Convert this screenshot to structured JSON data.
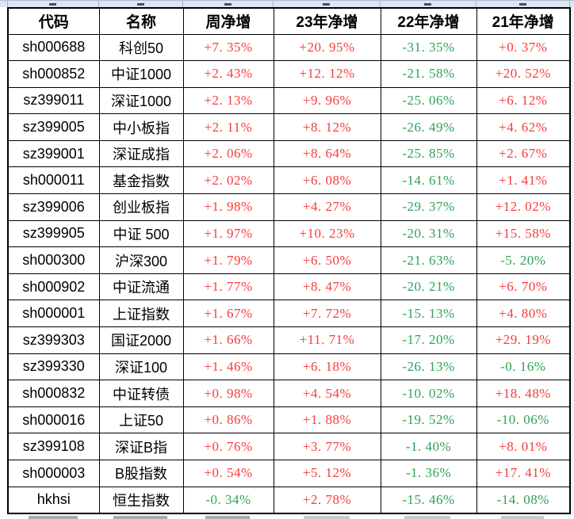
{
  "colors": {
    "positive": "#f83b3b",
    "negative": "#2fa254",
    "grid": "#000000",
    "strip_background": "#dce6f1"
  },
  "table": {
    "columns": [
      "代码",
      "名称",
      "周净增",
      "23年净增",
      "22年净增",
      "21年净增"
    ],
    "rows": [
      [
        "sh000688",
        "科创50",
        "+7.35%",
        "+20.95%",
        "-31.35%",
        "+0.37%"
      ],
      [
        "sh000852",
        "中证1000",
        "+2.43%",
        "+12.12%",
        "-21.58%",
        "+20.52%"
      ],
      [
        "sz399011",
        "深证1000",
        "+2.13%",
        "+9.96%",
        "-25.06%",
        "+6.12%"
      ],
      [
        "sz399005",
        "中小板指",
        "+2.11%",
        "+8.12%",
        "-26.49%",
        "+4.62%"
      ],
      [
        "sz399001",
        "深证成指",
        "+2.06%",
        "+8.64%",
        "-25.85%",
        "+2.67%"
      ],
      [
        "sh000011",
        "基金指数",
        "+2.02%",
        "+6.08%",
        "-14.61%",
        "+1.41%"
      ],
      [
        "sz399006",
        "创业板指",
        "+1.98%",
        "+4.27%",
        "-29.37%",
        "+12.02%"
      ],
      [
        "sz399905",
        "中证 500",
        "+1.97%",
        "+10.23%",
        "-20.31%",
        "+15.58%"
      ],
      [
        "sh000300",
        "沪深300",
        "+1.79%",
        "+6.50%",
        "-21.63%",
        "-5.20%"
      ],
      [
        "sh000902",
        "中证流通",
        "+1.77%",
        "+8.47%",
        "-20.21%",
        "+6.70%"
      ],
      [
        "sh000001",
        "上证指数",
        "+1.67%",
        "+7.72%",
        "-15.13%",
        "+4.80%"
      ],
      [
        "sz399303",
        "国证2000",
        "+1.66%",
        "+11.71%",
        "-17.20%",
        "+29.19%"
      ],
      [
        "sz399330",
        "深证100",
        "+1.46%",
        "+6.18%",
        "-26.13%",
        "-0.16%"
      ],
      [
        "sh000832",
        "中证转债",
        "+0.98%",
        "+4.54%",
        "-10.02%",
        "+18.48%"
      ],
      [
        "sh000016",
        "上证50",
        "+0.86%",
        "+1.88%",
        "-19.52%",
        "-10.06%"
      ],
      [
        "sz399108",
        "深证B指",
        "+0.76%",
        "+3.77%",
        "-1.40%",
        "+8.01%"
      ],
      [
        "sh000003",
        "B股指数",
        "+0.54%",
        "+5.12%",
        "-1.36%",
        "+17.41%"
      ],
      [
        "hkhsi",
        "恒生指数",
        "-0.34%",
        "+2.78%",
        "-15.46%",
        "-14.08%"
      ]
    ]
  }
}
